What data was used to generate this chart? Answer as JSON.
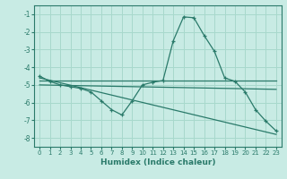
{
  "xlabel": "Humidex (Indice chaleur)",
  "ylabel": "",
  "background_color": "#c8ebe4",
  "grid_color": "#a8d8cc",
  "line_color": "#2a7a6a",
  "xlim": [
    -0.5,
    23.5
  ],
  "ylim": [
    -8.5,
    -0.5
  ],
  "yticks": [
    -8,
    -7,
    -6,
    -5,
    -4,
    -3,
    -2,
    -1
  ],
  "xticks": [
    0,
    1,
    2,
    3,
    4,
    5,
    6,
    7,
    8,
    9,
    10,
    11,
    12,
    13,
    14,
    15,
    16,
    17,
    18,
    19,
    20,
    21,
    22,
    23
  ],
  "series": [
    {
      "x": [
        0,
        1,
        2,
        3,
        4,
        5,
        6,
        7,
        8,
        9,
        10,
        11,
        12,
        13,
        14,
        15,
        16,
        17,
        18,
        19,
        20,
        21,
        22,
        23
      ],
      "y": [
        -4.5,
        -4.8,
        -5.0,
        -5.1,
        -5.2,
        -5.4,
        -5.9,
        -6.4,
        -6.7,
        -5.9,
        -5.0,
        -4.85,
        -4.75,
        -2.5,
        -1.15,
        -1.2,
        -2.2,
        -3.1,
        -4.6,
        -4.8,
        -5.4,
        -6.4,
        -7.05,
        -7.6
      ],
      "marker": "+"
    },
    {
      "x": [
        0,
        23
      ],
      "y": [
        -4.75,
        -4.75
      ],
      "marker": null
    },
    {
      "x": [
        0,
        23
      ],
      "y": [
        -5.0,
        -5.25
      ],
      "marker": null
    },
    {
      "x": [
        0,
        23
      ],
      "y": [
        -4.6,
        -7.8
      ],
      "marker": null
    }
  ]
}
